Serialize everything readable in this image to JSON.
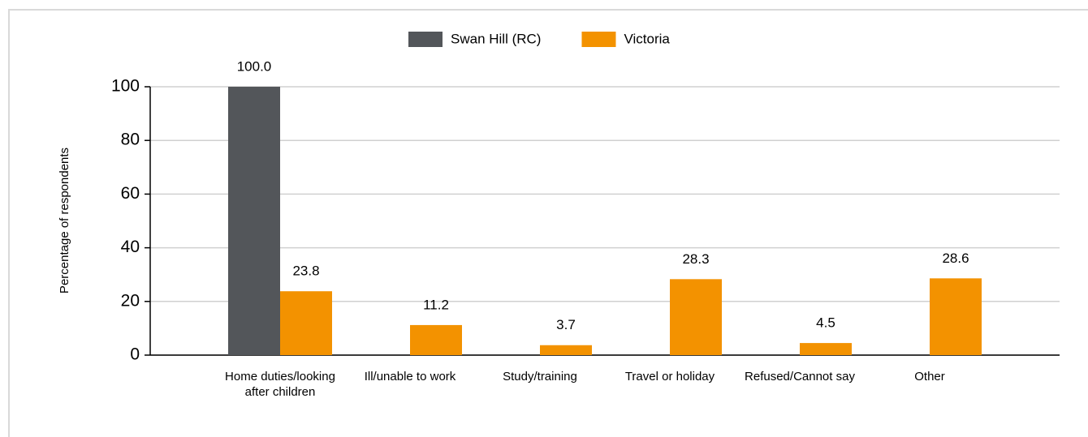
{
  "chart_data": {
    "type": "bar",
    "y_axis_label": "Percentage of respondents",
    "categories": [
      "Home duties/looking after children",
      "Ill/unable to work",
      "Study/training",
      "Travel or holiday",
      "Refused/Cannot say",
      "Other"
    ],
    "series": [
      {
        "name": "Swan Hill (RC)",
        "color": "#53565a",
        "values": [
          100,
          null,
          null,
          null,
          null,
          null
        ],
        "value_labels": [
          "100.0",
          null,
          null,
          null,
          null,
          null
        ]
      },
      {
        "name": "Victoria",
        "color": "#f39200",
        "values": [
          23.8,
          11.2,
          3.7,
          28.3,
          4.5,
          28.6
        ]
      }
    ],
    "ylim": [
      0,
      100
    ],
    "yticks": [
      0,
      20,
      40,
      60,
      80,
      100
    ],
    "grid": true
  }
}
